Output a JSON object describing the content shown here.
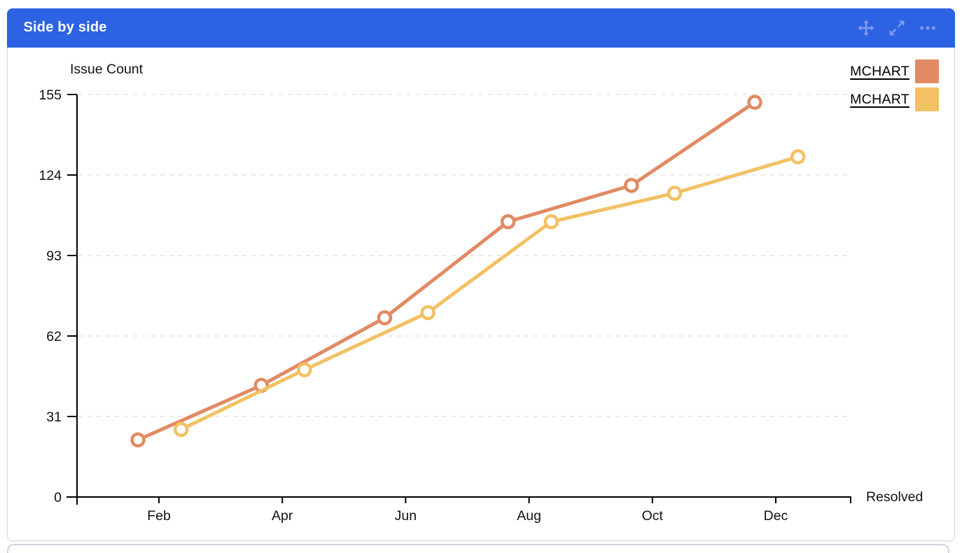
{
  "gadget": {
    "title": "Side by side",
    "header_color": "#2D62E2",
    "icon_color": "#7F9CEF",
    "header_icons": [
      {
        "name": "move-icon",
        "glyph": "four-direction-arrows"
      },
      {
        "name": "expand-icon",
        "glyph": "diagonal-resize-arrows"
      },
      {
        "name": "more-options-icon",
        "glyph": "ellipsis"
      }
    ]
  },
  "chart_data": {
    "type": "line",
    "title": "Issue Count",
    "xlabel": "Resolved",
    "x_tick_labels": [
      "Feb",
      "Apr",
      "Jun",
      "Aug",
      "Oct",
      "Dec"
    ],
    "x_tick_months": [
      2,
      4,
      6,
      8,
      10,
      12
    ],
    "y_ticks": [
      0,
      31,
      62,
      93,
      124,
      155
    ],
    "ylim": [
      0,
      155
    ],
    "grid": "dashed-horizontal",
    "grid_color": "#EAEAEA",
    "axis_color": "#000000",
    "legend_position": "top-right",
    "marker": "open-circle",
    "series": [
      {
        "name": "MCHART",
        "color": "#E18A63",
        "x_months": [
          1.66,
          3.66,
          5.66,
          7.66,
          9.66,
          11.66
        ],
        "values": [
          22,
          43,
          69,
          106,
          120,
          152
        ]
      },
      {
        "name": "MCHART",
        "color": "#F2C164",
        "x_months": [
          2.36,
          4.36,
          6.36,
          8.36,
          10.36,
          12.36
        ],
        "values": [
          26,
          49,
          71,
          106,
          117,
          131
        ]
      }
    ]
  }
}
